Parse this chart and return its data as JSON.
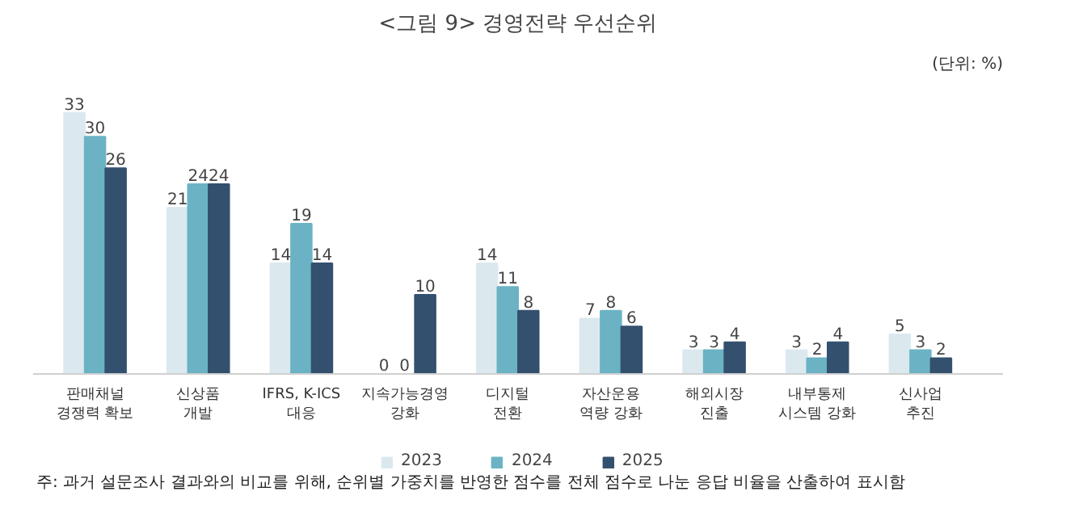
{
  "chart_data": {
    "type": "bar",
    "title": "<그림 9> 경영전략 우선순위",
    "categories": [
      "판매채널\n경쟁력 확보",
      "신상품\n개발",
      "IFRS, K-ICS\n대응",
      "지속가능경영\n강화",
      "디지털\n전환",
      "자산운용\n역량 강화",
      "해외시장\n진출",
      "내부통제\n시스템 강화",
      "신사업\n추진"
    ],
    "series": [
      {
        "name": "2023",
        "color": "#dbe9ef",
        "values": [
          33,
          21,
          14,
          0,
          14,
          7,
          3,
          3,
          5
        ]
      },
      {
        "name": "2024",
        "color": "#6bb3c4",
        "values": [
          30,
          24,
          19,
          0,
          11,
          8,
          3,
          2,
          3
        ]
      },
      {
        "name": "2025",
        "color": "#34506f",
        "values": [
          26,
          24,
          14,
          10,
          8,
          6,
          4,
          4,
          2
        ]
      }
    ],
    "data_labels": true,
    "legend": "bottom",
    "grid": false,
    "annotations": [
      "(단위: %)",
      "주: 과거 설문조사 결과와의 비교를 위해, 순위별 가중치를 반영한 점수를 전체 점수로 나눈 응답 비율을 산출하여 표시함"
    ]
  }
}
